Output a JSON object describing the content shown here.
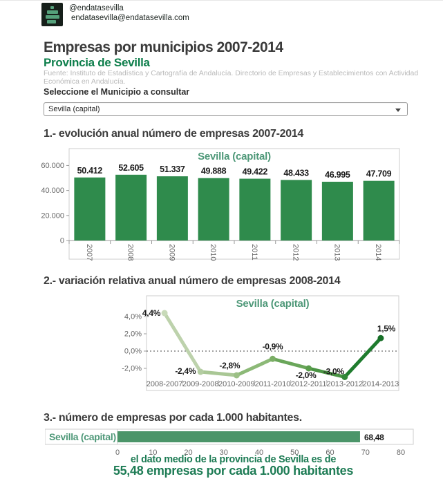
{
  "header": {
    "handle": "@endatasevilla",
    "email": "endatasevilla@endatasevilla.com",
    "logo_icon": "bar-chart-logo",
    "logo_colors": {
      "bg": "#161f1a",
      "bars": "#55a17b"
    }
  },
  "title": "Empresas por municipios 2007-2014",
  "subtitle": "Provincia de Sevilla",
  "source": "Fuente: Instituto de Estadística y Cartografía de Andalucía. Directorio de Empresas y Establecimientos con Actividad Económica en Andalucía.",
  "selector": {
    "label": "Seleccione el Municipio a consultar",
    "value": "Sevilla (capital)",
    "arrow_icon": "chevron-down"
  },
  "sections": [
    {
      "heading": "1.- evolución anual número de empresas 2007-2014"
    },
    {
      "heading": "2.- variación relativa anual número de empresas 2008-2014"
    },
    {
      "heading": "3.- número de empresas por cada 1.000 habitantes."
    }
  ],
  "colors": {
    "subtitle_green": "#0d7e4b",
    "chart_title_green": "#4e9878",
    "footer_green": "#1e7c55",
    "panel_border": "#cccccc",
    "axis_gray": "#999999"
  },
  "chart_data": [
    {
      "type": "bar",
      "title": "Sevilla (capital)",
      "categories": [
        "2007",
        "2008",
        "2009",
        "2010",
        "2011",
        "2012",
        "2013",
        "2014"
      ],
      "values": [
        50412,
        52605,
        51337,
        49888,
        49422,
        48433,
        46995,
        47709
      ],
      "value_labels": [
        "50.412",
        "52.605",
        "51.337",
        "49.888",
        "49.422",
        "48.433",
        "46.995",
        "47.709"
      ],
      "ytick_values": [
        60000,
        40000,
        20000,
        0
      ],
      "ytick_labels": [
        "60.000",
        "40.000",
        "20.000",
        "0"
      ],
      "ylim": [
        0,
        73500
      ],
      "xlabel": "",
      "ylabel": "",
      "grid": false,
      "legend": "none",
      "bar_color": "#2f8b4c",
      "title_color": "#4e9878"
    },
    {
      "type": "line",
      "title": "Sevilla (capital)",
      "categories": [
        "2008-2007",
        "2009-2008",
        "2010-2009",
        "2011-2010",
        "2012-2011",
        "2013-2012",
        "2014-2013"
      ],
      "values": [
        4.4,
        -2.4,
        -2.8,
        -0.9,
        -2.0,
        -3.0,
        1.5
      ],
      "value_labels": [
        "4,4%",
        "-2,4%",
        "-2,8%",
        "-0,9%",
        "-2,0%",
        "-3,0%",
        "1,5%"
      ],
      "ytick_values": [
        4,
        2,
        0,
        -2
      ],
      "ytick_labels": [
        "4,0%",
        "2,0%",
        "0,0%",
        "-2,0%"
      ],
      "ylim": [
        -4.56,
        6.4
      ],
      "zero_line": "dashed",
      "grid": false,
      "legend": "none",
      "segment_colors": [
        "#bdd2ac",
        "#a9c795",
        "#8cb977",
        "#6aa65a",
        "#4a9443",
        "#1f7c2e"
      ],
      "marker_colors": [
        "#c8dab9",
        "#b4cda2",
        "#9cc086",
        "#7bae66",
        "#5a9d4c",
        "#318738",
        "#166f27"
      ],
      "title_color": "#4e9878"
    },
    {
      "type": "hbar",
      "category": "Sevilla (capital)",
      "value": 68.48,
      "value_label": "68,48",
      "xtick_values": [
        0,
        10,
        20,
        30,
        40,
        50,
        60,
        70,
        80
      ],
      "xtick_labels": [
        "0",
        "10",
        "20",
        "30",
        "40",
        "50",
        "60",
        "70",
        "80"
      ],
      "xlim": [
        0,
        80
      ],
      "bar_color": "#4b9569",
      "category_color": "#4e9878",
      "footer_line1": "el dato medio de la provincia de Sevilla es de",
      "footer_line2": "55,48 empresas por cada 1.000 habitantes"
    }
  ]
}
